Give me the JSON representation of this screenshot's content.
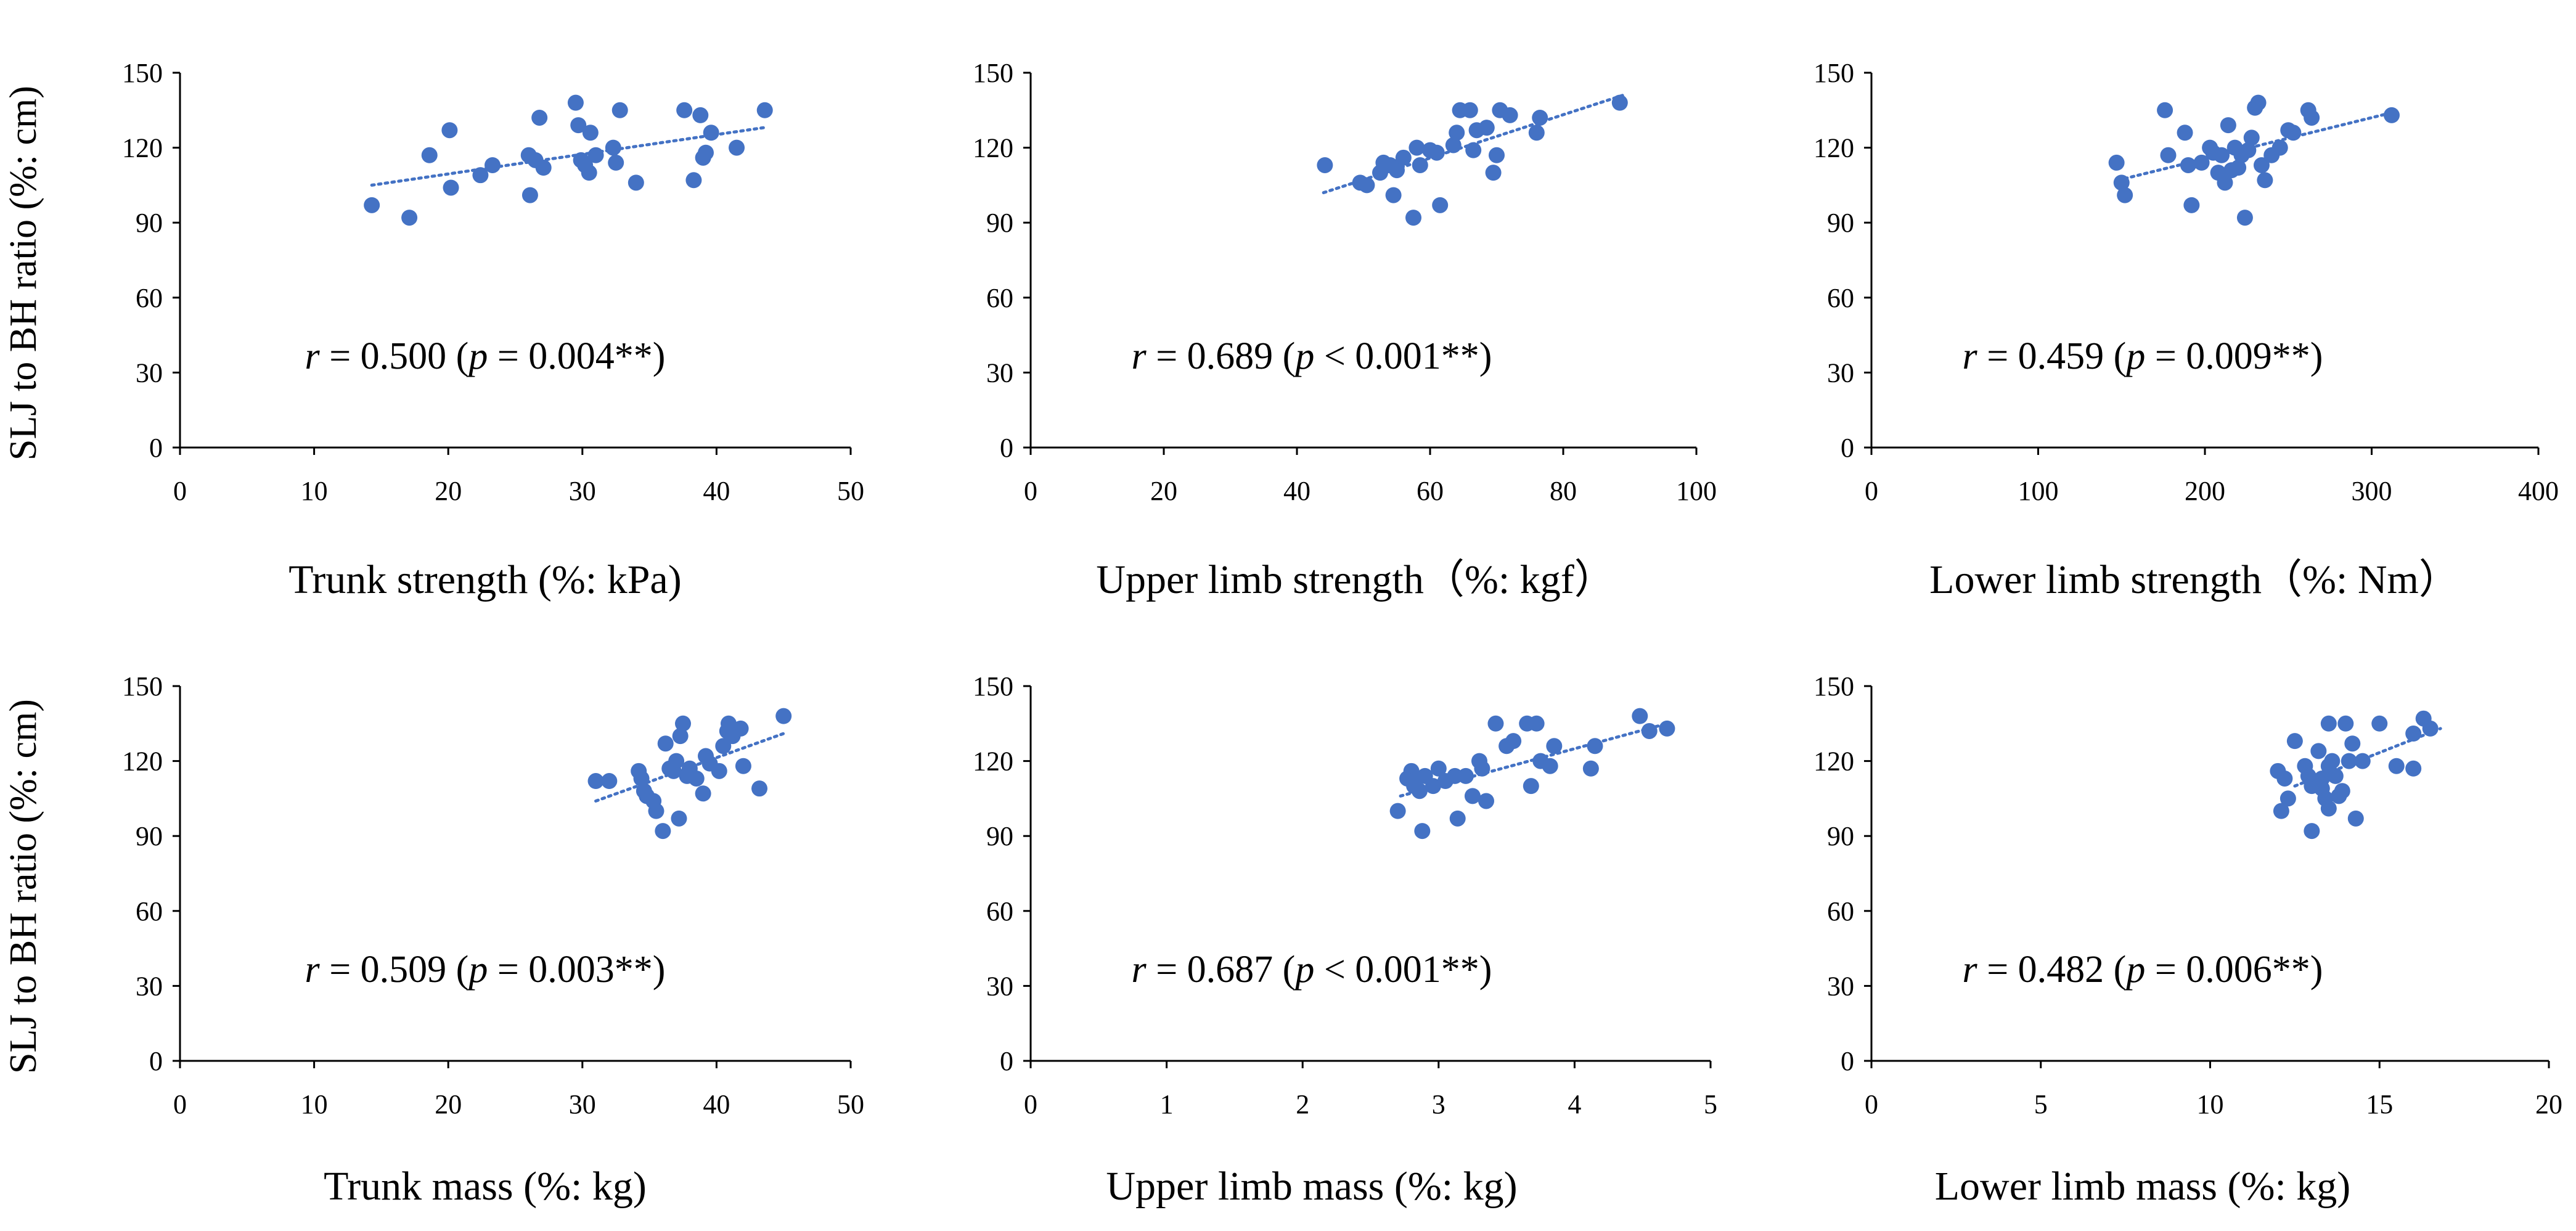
{
  "figure": {
    "row_ylabels": [
      "SLJ to BH ratio (%: cm)",
      "SLJ to BH ratio (%: cm)"
    ]
  },
  "colors": {
    "marker": "#4472C4",
    "trend": "#4472C4",
    "axis": "#000000"
  },
  "chart_data": [
    {
      "type": "scatter",
      "title": "",
      "xlabel": "Trunk strength (%: kPa)",
      "ylabel": "SLJ to BH ratio (%: cm)",
      "xlim": [
        0,
        50
      ],
      "ylim": [
        0,
        150
      ],
      "xticks": [
        0,
        10,
        20,
        30,
        40,
        50
      ],
      "yticks": [
        0,
        30,
        60,
        90,
        120,
        150
      ],
      "trend": {
        "x": [
          14.3,
          43.5
        ],
        "y": [
          105,
          128
        ]
      },
      "annotation": {
        "r": "r",
        "eq1": " = 0.500 (",
        "p": "p",
        "eq2": " = 0.004**)"
      },
      "points": [
        [
          14.3,
          97
        ],
        [
          17.1,
          92
        ],
        [
          18.6,
          117
        ],
        [
          20.1,
          127
        ],
        [
          20.2,
          104
        ],
        [
          22.4,
          109
        ],
        [
          23.3,
          113
        ],
        [
          26.0,
          117
        ],
        [
          26.1,
          101
        ],
        [
          26.5,
          115
        ],
        [
          26.8,
          132
        ],
        [
          27.1,
          112
        ],
        [
          29.5,
          138
        ],
        [
          29.7,
          129
        ],
        [
          29.9,
          115
        ],
        [
          30.2,
          113
        ],
        [
          30.5,
          110
        ],
        [
          30.6,
          126
        ],
        [
          31.0,
          117
        ],
        [
          32.3,
          120
        ],
        [
          32.5,
          114
        ],
        [
          32.8,
          135
        ],
        [
          34.0,
          106
        ],
        [
          37.6,
          135
        ],
        [
          38.3,
          107
        ],
        [
          38.8,
          133
        ],
        [
          39.0,
          116
        ],
        [
          39.2,
          118
        ],
        [
          39.6,
          126
        ],
        [
          41.5,
          120
        ],
        [
          43.6,
          135
        ]
      ]
    },
    {
      "type": "scatter",
      "title": "",
      "xlabel": "Upper limb strength（%: kgf）",
      "ylabel": "",
      "xlim": [
        0,
        100
      ],
      "ylim": [
        0,
        150
      ],
      "xticks": [
        0,
        20,
        40,
        60,
        80,
        100
      ],
      "yticks": [
        0,
        30,
        60,
        90,
        120,
        150
      ],
      "trend": {
        "x": [
          44,
          89
        ],
        "y": [
          102,
          141
        ]
      },
      "annotation": {
        "r": "r",
        "eq1": " = 0.689 (",
        "p": "p",
        "eq2": " < 0.001**)"
      },
      "points": [
        [
          44.2,
          113
        ],
        [
          49.5,
          106
        ],
        [
          50.5,
          105
        ],
        [
          52.5,
          110
        ],
        [
          53.0,
          114
        ],
        [
          54.0,
          113
        ],
        [
          54.5,
          101
        ],
        [
          55.0,
          111
        ],
        [
          56.0,
          116
        ],
        [
          57.5,
          92
        ],
        [
          58.0,
          120
        ],
        [
          58.5,
          113
        ],
        [
          60.0,
          119
        ],
        [
          61.0,
          118
        ],
        [
          61.5,
          97
        ],
        [
          63.5,
          121
        ],
        [
          64.0,
          126
        ],
        [
          64.5,
          135
        ],
        [
          66.0,
          135
        ],
        [
          66.5,
          119
        ],
        [
          67.0,
          127
        ],
        [
          68.5,
          128
        ],
        [
          69.5,
          110
        ],
        [
          70.0,
          117
        ],
        [
          70.5,
          135
        ],
        [
          72.0,
          133
        ],
        [
          76.0,
          126
        ],
        [
          76.5,
          132
        ],
        [
          88.5,
          138
        ]
      ]
    },
    {
      "type": "scatter",
      "title": "",
      "xlabel": "Lower limb strength（%: Nm）",
      "ylabel": "",
      "xlim": [
        0,
        400
      ],
      "ylim": [
        0,
        150
      ],
      "xticks": [
        0,
        100,
        200,
        300,
        400
      ],
      "yticks": [
        0,
        30,
        60,
        90,
        120,
        150
      ],
      "trend": {
        "x": [
          148,
          312
        ],
        "y": [
          107,
          134
        ]
      },
      "annotation": {
        "r": "r",
        "eq1": " = 0.459 (",
        "p": "p",
        "eq2": " = 0.009**)"
      },
      "points": [
        [
          147,
          114
        ],
        [
          150,
          106
        ],
        [
          152,
          101
        ],
        [
          176,
          135
        ],
        [
          178,
          117
        ],
        [
          188,
          126
        ],
        [
          190,
          113
        ],
        [
          192,
          97
        ],
        [
          198,
          114
        ],
        [
          203,
          120
        ],
        [
          205,
          118
        ],
        [
          208,
          110
        ],
        [
          210,
          117
        ],
        [
          212,
          106
        ],
        [
          214,
          129
        ],
        [
          216,
          111
        ],
        [
          218,
          120
        ],
        [
          220,
          112
        ],
        [
          222,
          117
        ],
        [
          224,
          92
        ],
        [
          226,
          119
        ],
        [
          228,
          124
        ],
        [
          230,
          136
        ],
        [
          232,
          138
        ],
        [
          234,
          113
        ],
        [
          236,
          107
        ],
        [
          240,
          117
        ],
        [
          245,
          120
        ],
        [
          250,
          127
        ],
        [
          253,
          126
        ],
        [
          262,
          135
        ],
        [
          264,
          132
        ],
        [
          312,
          133
        ]
      ]
    },
    {
      "type": "scatter",
      "title": "",
      "xlabel": "Trunk mass (%: kg)",
      "ylabel": "SLJ to BH ratio (%: cm)",
      "xlim": [
        0,
        50
      ],
      "ylim": [
        0,
        150
      ],
      "xticks": [
        0,
        10,
        20,
        30,
        40,
        50
      ],
      "yticks": [
        0,
        30,
        60,
        90,
        120,
        150
      ],
      "trend": {
        "x": [
          31,
          45
        ],
        "y": [
          104,
          131
        ]
      },
      "annotation": {
        "r": "r",
        "eq1": " = 0.509 (",
        "p": "p",
        "eq2": " = 0.003**)"
      },
      "points": [
        [
          31.0,
          112
        ],
        [
          32.0,
          112
        ],
        [
          34.2,
          116
        ],
        [
          34.4,
          113
        ],
        [
          34.6,
          108
        ],
        [
          34.8,
          106
        ],
        [
          35.3,
          104
        ],
        [
          35.5,
          100
        ],
        [
          36.0,
          92
        ],
        [
          36.2,
          127
        ],
        [
          36.5,
          117
        ],
        [
          36.8,
          116
        ],
        [
          37.0,
          120
        ],
        [
          37.2,
          97
        ],
        [
          37.3,
          130
        ],
        [
          37.5,
          135
        ],
        [
          37.8,
          114
        ],
        [
          38.0,
          117
        ],
        [
          38.5,
          113
        ],
        [
          39.0,
          107
        ],
        [
          39.2,
          122
        ],
        [
          39.5,
          119
        ],
        [
          40.2,
          116
        ],
        [
          40.5,
          126
        ],
        [
          40.8,
          132
        ],
        [
          40.9,
          135
        ],
        [
          41.2,
          130
        ],
        [
          41.8,
          133
        ],
        [
          42.0,
          118
        ],
        [
          43.2,
          109
        ],
        [
          45.0,
          138
        ]
      ]
    },
    {
      "type": "scatter",
      "title": "",
      "xlabel": "Upper limb mass (%: kg)",
      "ylabel": "",
      "xlim": [
        0,
        5
      ],
      "ylim": [
        0,
        150
      ],
      "xticks": [
        0,
        1,
        2,
        3,
        4,
        5
      ],
      "yticks": [
        0,
        30,
        60,
        90,
        120,
        150
      ],
      "trend": {
        "x": [
          2.72,
          4.68
        ],
        "y": [
          106,
          135
        ]
      },
      "annotation": {
        "r": "r",
        "eq1": " = 0.687 (",
        "p": "p",
        "eq2": " < 0.001**)"
      },
      "points": [
        [
          2.7,
          100
        ],
        [
          2.77,
          113
        ],
        [
          2.8,
          116
        ],
        [
          2.82,
          110
        ],
        [
          2.84,
          113
        ],
        [
          2.86,
          108
        ],
        [
          2.88,
          92
        ],
        [
          2.9,
          114
        ],
        [
          2.96,
          110
        ],
        [
          3.0,
          117
        ],
        [
          3.05,
          112
        ],
        [
          3.12,
          114
        ],
        [
          3.14,
          97
        ],
        [
          3.2,
          114
        ],
        [
          3.25,
          106
        ],
        [
          3.3,
          120
        ],
        [
          3.32,
          117
        ],
        [
          3.35,
          104
        ],
        [
          3.42,
          135
        ],
        [
          3.5,
          126
        ],
        [
          3.55,
          128
        ],
        [
          3.65,
          135
        ],
        [
          3.68,
          110
        ],
        [
          3.72,
          135
        ],
        [
          3.75,
          120
        ],
        [
          3.82,
          118
        ],
        [
          3.85,
          126
        ],
        [
          4.12,
          117
        ],
        [
          4.15,
          126
        ],
        [
          4.48,
          138
        ],
        [
          4.55,
          132
        ],
        [
          4.68,
          133
        ]
      ]
    },
    {
      "type": "scatter",
      "title": "",
      "xlabel": "Lower limb mass (%: kg)",
      "ylabel": "",
      "xlim": [
        0,
        20
      ],
      "ylim": [
        0,
        150
      ],
      "xticks": [
        0,
        5,
        10,
        15,
        20
      ],
      "yticks": [
        0,
        30,
        60,
        90,
        120,
        150
      ],
      "trend": {
        "x": [
          12.5,
          16.8
        ],
        "y": [
          110,
          133
        ]
      },
      "annotation": {
        "r": "r",
        "eq1": " = 0.482 (",
        "p": "p",
        "eq2": " = 0.006**)"
      },
      "points": [
        [
          12.0,
          116
        ],
        [
          12.1,
          100
        ],
        [
          12.2,
          113
        ],
        [
          12.3,
          105
        ],
        [
          12.5,
          128
        ],
        [
          12.8,
          118
        ],
        [
          12.9,
          114
        ],
        [
          13.0,
          110
        ],
        [
          13.0,
          92
        ],
        [
          13.2,
          124
        ],
        [
          13.3,
          113
        ],
        [
          13.3,
          109
        ],
        [
          13.4,
          105
        ],
        [
          13.5,
          101
        ],
        [
          13.5,
          135
        ],
        [
          13.5,
          118
        ],
        [
          13.6,
          120
        ],
        [
          13.7,
          114
        ],
        [
          13.8,
          106
        ],
        [
          13.9,
          108
        ],
        [
          14.0,
          135
        ],
        [
          14.1,
          120
        ],
        [
          14.2,
          127
        ],
        [
          14.3,
          97
        ],
        [
          14.5,
          120
        ],
        [
          15.0,
          135
        ],
        [
          15.5,
          118
        ],
        [
          16.0,
          117
        ],
        [
          16.0,
          131
        ],
        [
          16.3,
          137
        ],
        [
          16.5,
          133
        ]
      ]
    }
  ]
}
